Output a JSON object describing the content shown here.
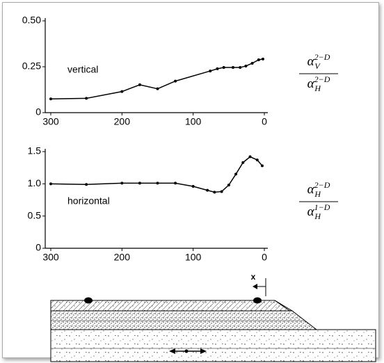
{
  "chart_data": [
    {
      "type": "line",
      "annotation": "vertical",
      "ratio": {
        "numerator": {
          "symbol": "α",
          "sub": "V",
          "sup": "2−D"
        },
        "denominator": {
          "symbol": "α",
          "sub": "H",
          "sup": "2−D"
        }
      },
      "x": [
        300,
        250,
        200,
        175,
        150,
        125,
        76,
        66,
        57,
        44,
        34,
        26,
        17,
        8,
        2
      ],
      "values": [
        0.075,
        0.078,
        0.115,
        0.152,
        0.13,
        0.172,
        0.227,
        0.239,
        0.246,
        0.246,
        0.246,
        0.254,
        0.269,
        0.288,
        0.292
      ],
      "xlim": [
        300,
        0
      ],
      "xticks": [
        300,
        200,
        100,
        0
      ],
      "ylim": [
        0,
        0.5
      ],
      "yticks": [
        0,
        0.25,
        {
          "value": 0.5,
          "label": "0.50"
        }
      ],
      "color": "#000000"
    },
    {
      "type": "line",
      "annotation": "horizontal",
      "ratio": {
        "numerator": {
          "symbol": "α",
          "sub": "H",
          "sup": "2−D"
        },
        "denominator": {
          "symbol": "α",
          "sub": "H",
          "sup": "1−D"
        }
      },
      "x": [
        300,
        250,
        200,
        175,
        150,
        125,
        100,
        80,
        70,
        60,
        50,
        40,
        30,
        20,
        10,
        3
      ],
      "values": [
        1.0,
        0.99,
        1.01,
        1.01,
        1.01,
        1.01,
        0.96,
        0.9,
        0.87,
        0.88,
        0.98,
        1.15,
        1.33,
        1.42,
        1.37,
        1.28
      ],
      "xlim": [
        300,
        0
      ],
      "xticks": [
        300,
        200,
        100,
        0
      ],
      "ylim": [
        0,
        1.5
      ],
      "yticks": [
        0,
        0.5,
        {
          "value": 1,
          "label": "1.0"
        },
        1.5
      ],
      "color": "#000000"
    }
  ],
  "diagram": {
    "x_label": "x"
  }
}
